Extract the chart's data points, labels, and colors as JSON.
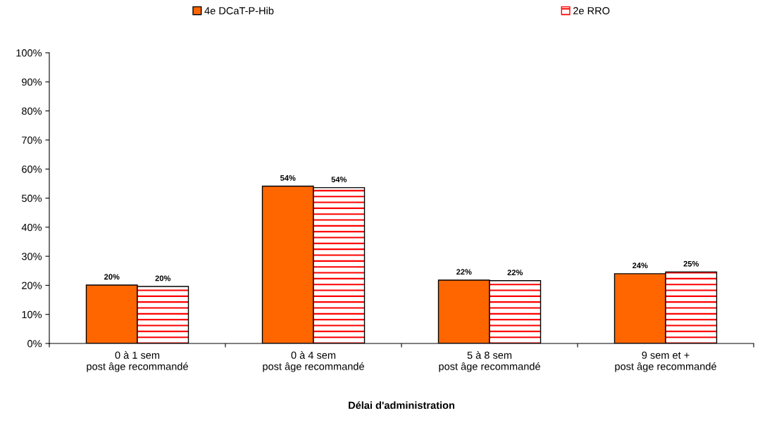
{
  "chart_data": {
    "type": "bar",
    "xlabel": "Délai d'administration",
    "categories": [
      "0 à 1 sem\npost âge recommandé",
      "0 à 4 sem\npost âge recommandé",
      "5 à 8 sem\npost âge recommandé",
      "9 sem et +\npost âge recommandé"
    ],
    "series": [
      {
        "name": "4e DCaT-P-Hib",
        "color": "#ff6600",
        "values": [
          20.1,
          54.1,
          21.8,
          24.0
        ],
        "value_labels": [
          "20%",
          "54%",
          "22%",
          "24%"
        ]
      },
      {
        "name": "2e RRO",
        "color": "#ff0000",
        "values": [
          19.6,
          53.6,
          21.6,
          24.6
        ],
        "value_labels": [
          "20%",
          "54%",
          "22%",
          "25%"
        ]
      }
    ],
    "ylim": [
      0,
      100
    ],
    "yticks": [
      {
        "value": 0,
        "label": "0%"
      },
      {
        "value": 10,
        "label": "10%"
      },
      {
        "value": 20,
        "label": "20%"
      },
      {
        "value": 30,
        "label": "30%"
      },
      {
        "value": 40,
        "label": "40%"
      },
      {
        "value": 50,
        "label": "50%"
      },
      {
        "value": 60,
        "label": "60%"
      },
      {
        "value": 70,
        "label": "70%"
      },
      {
        "value": 80,
        "label": "80%"
      },
      {
        "value": 90,
        "label": "90%"
      },
      {
        "value": 100,
        "label": "100%"
      }
    ],
    "grid": false,
    "legend": "top"
  }
}
